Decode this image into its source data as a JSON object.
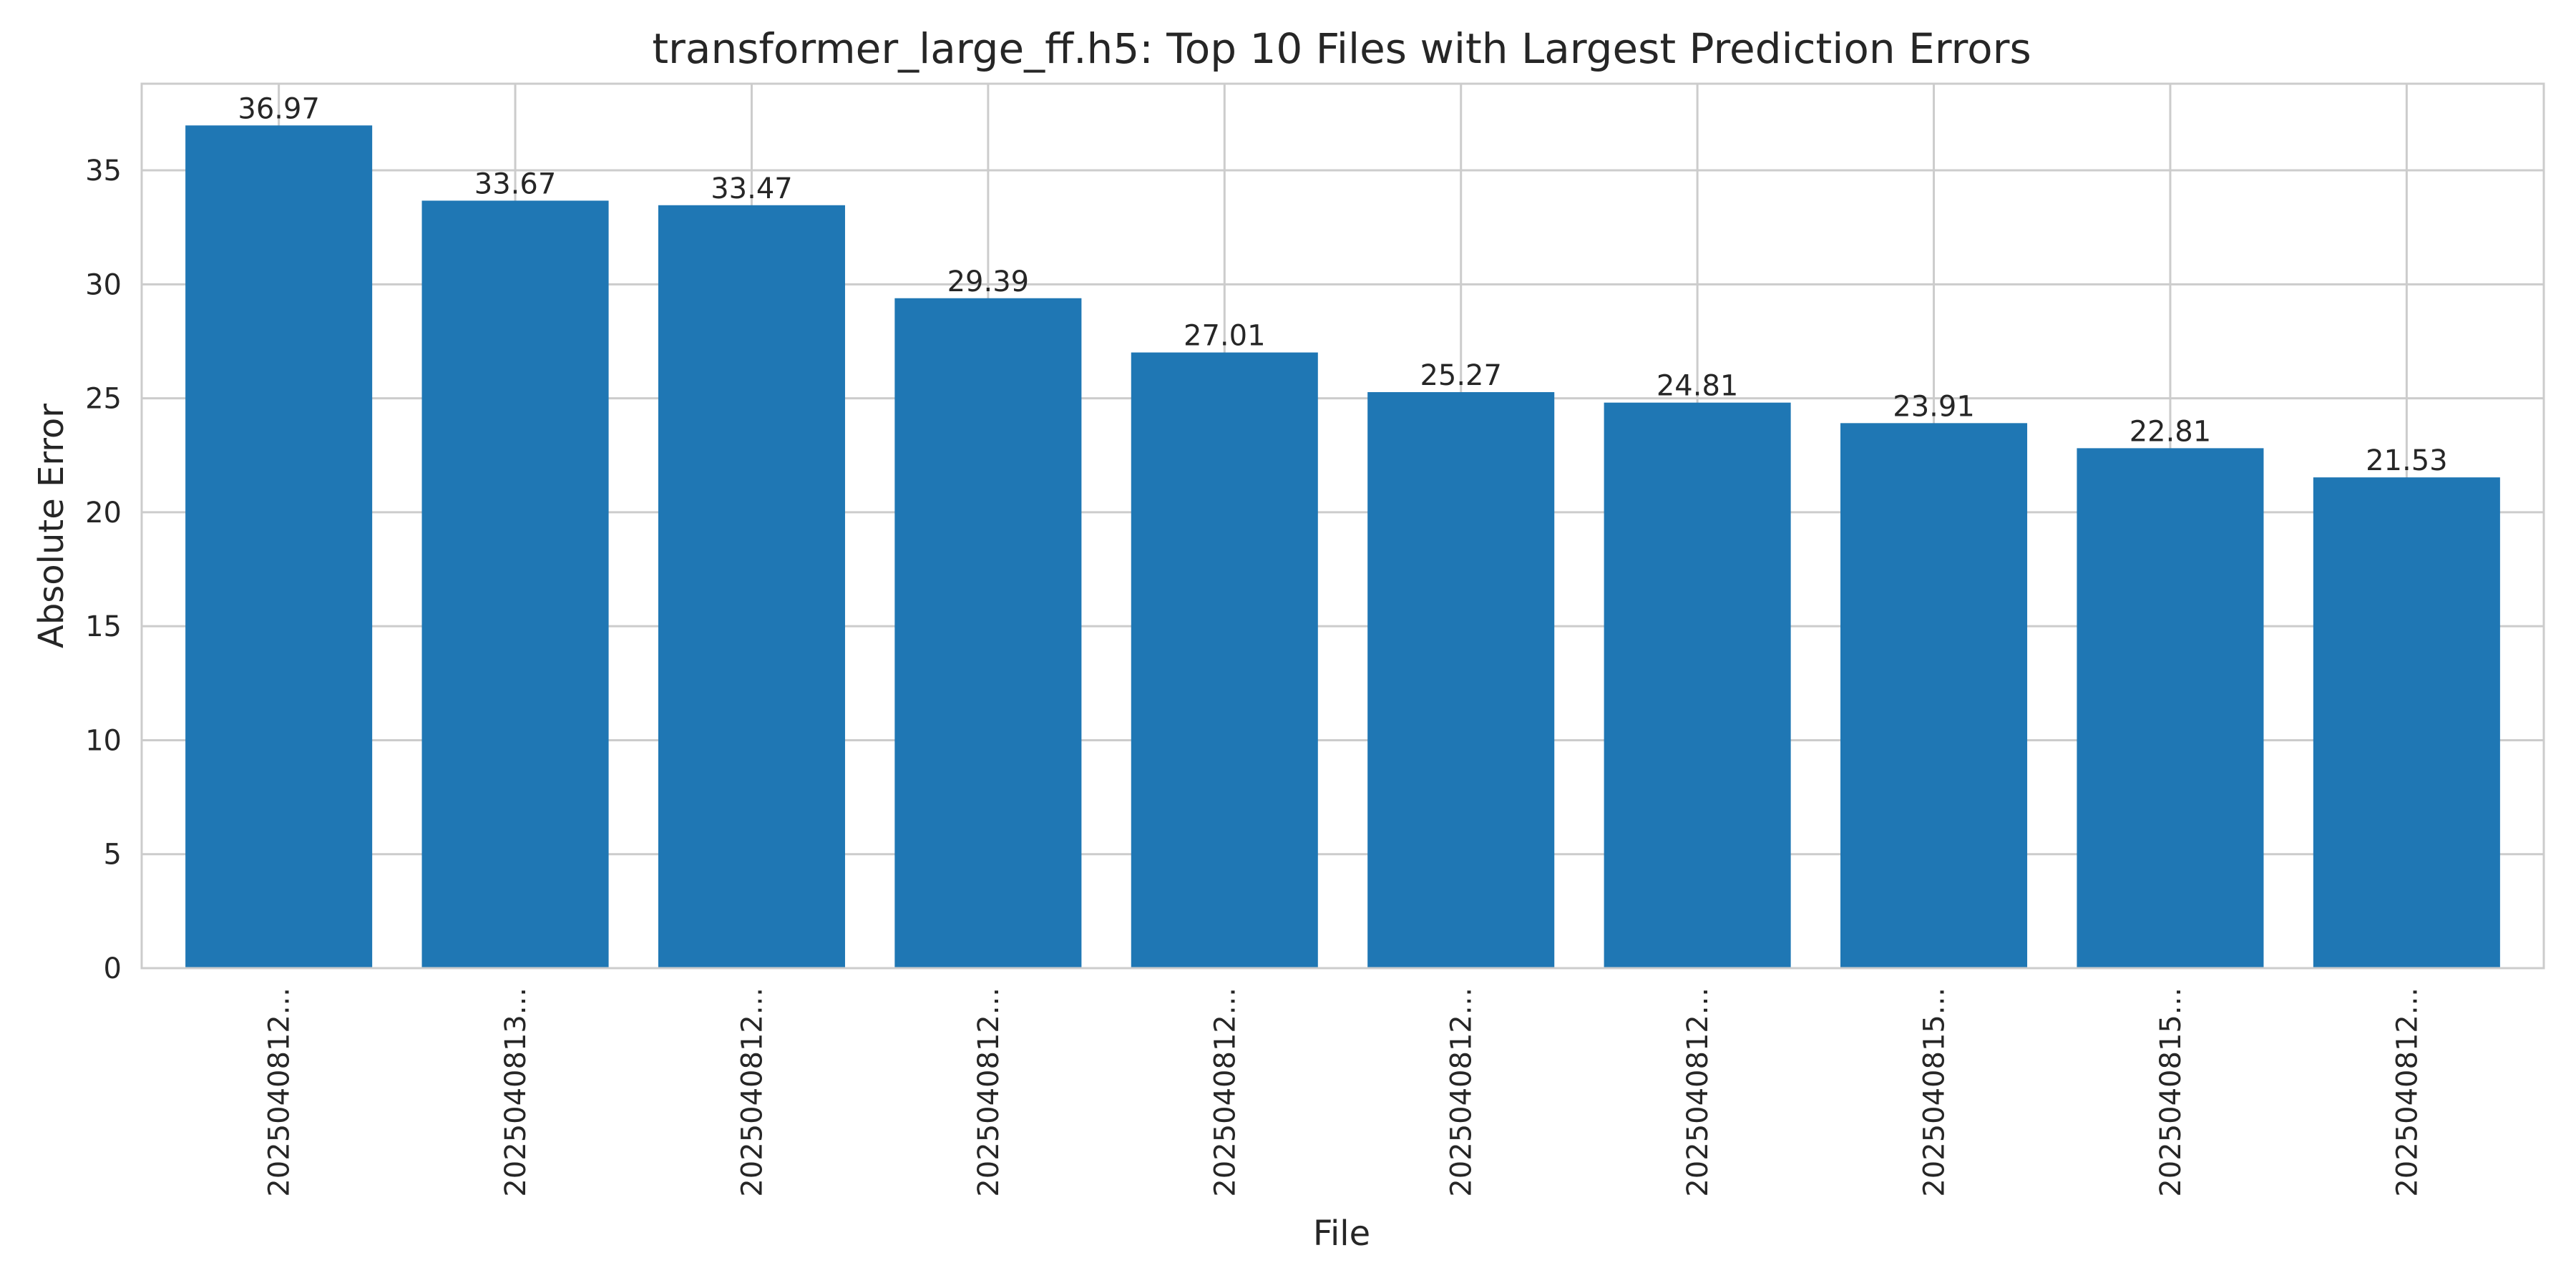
{
  "chart_data": {
    "type": "bar",
    "title": "transformer_large_ff.h5: Top 10 Files with Largest Prediction Errors",
    "xlabel": "File",
    "ylabel": "Absolute Error",
    "categories": [
      "2025040812...",
      "2025040813...",
      "2025040812...",
      "2025040812...",
      "2025040812...",
      "2025040812...",
      "2025040812...",
      "2025040815...",
      "2025040815...",
      "2025040812..."
    ],
    "values": [
      36.97,
      33.67,
      33.47,
      29.39,
      27.01,
      25.27,
      24.81,
      23.91,
      22.81,
      21.53
    ],
    "data_labels": [
      "36.97",
      "33.67",
      "33.47",
      "29.39",
      "27.01",
      "25.27",
      "24.81",
      "23.91",
      "22.81",
      "21.53"
    ],
    "ylim": [
      0,
      38.8
    ],
    "yticks": [
      0,
      5,
      10,
      15,
      20,
      25,
      30,
      35
    ],
    "grid": true,
    "bar_color": "#1f77b4",
    "grid_color": "#cccccc"
  }
}
